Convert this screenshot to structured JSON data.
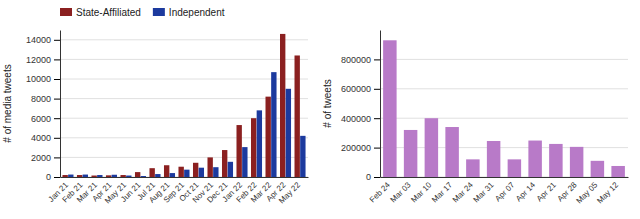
{
  "chart_data": [
    {
      "type": "bar",
      "categories": [
        "Jan 21",
        "Feb 21",
        "Mar 21",
        "Apr 21",
        "May 21",
        "Jun 21",
        "Jul 21",
        "Aug 21",
        "Sep 21",
        "Oct 21",
        "Nov 21",
        "Dec 21",
        "Jan 22",
        "Feb 22",
        "Mar 22",
        "Apr 22",
        "May 22"
      ],
      "series": [
        {
          "name": "State-Affiliated",
          "color": "#8B2020",
          "values": [
            200,
            200,
            150,
            170,
            200,
            500,
            900,
            1200,
            1050,
            1450,
            2000,
            2750,
            5300,
            6000,
            8200,
            14600,
            12400
          ]
        },
        {
          "name": "Independent",
          "color": "#1C3A9E",
          "values": [
            250,
            250,
            200,
            230,
            150,
            100,
            300,
            400,
            750,
            950,
            1000,
            1550,
            3050,
            6800,
            10700,
            9000,
            4200
          ]
        }
      ],
      "ylabel": "# of media tweets",
      "ylim": [
        0,
        15000
      ],
      "yticks": [
        0,
        2000,
        4000,
        6000,
        8000,
        10000,
        12000,
        14000
      ],
      "grid": true,
      "legend": "top-left"
    },
    {
      "type": "bar",
      "categories": [
        "Feb 24",
        "Mar 03",
        "Mar 10",
        "Mar 17",
        "Mar 24",
        "Mar 31",
        "Apr 07",
        "Apr 14",
        "Apr 21",
        "Apr 28",
        "May 05",
        "May 12"
      ],
      "values": [
        930000,
        320000,
        400000,
        340000,
        120000,
        245000,
        120000,
        248000,
        225000,
        205000,
        110000,
        75000
      ],
      "color": "#B87AC8",
      "ylabel": "# of tweets",
      "ylim": [
        0,
        1000000
      ],
      "yticks": [
        0,
        200000,
        400000,
        600000,
        800000
      ],
      "grid": true
    }
  ]
}
